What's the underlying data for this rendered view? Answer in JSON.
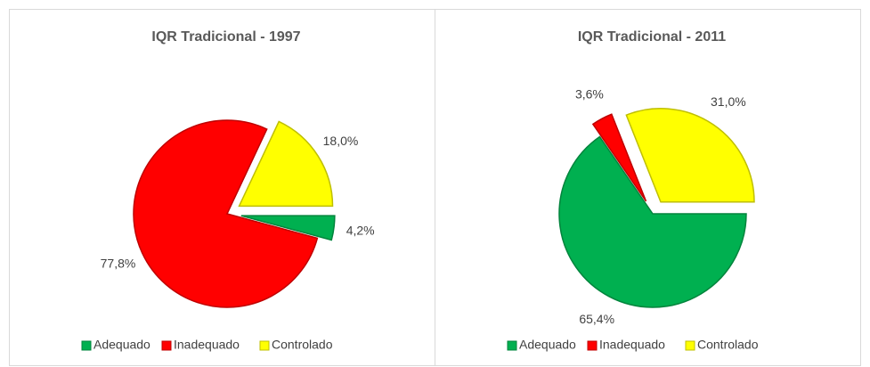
{
  "chart_data": [
    {
      "type": "pie",
      "title": "IQR Tradicional - 1997",
      "categories": [
        "Adequado",
        "Inadequado",
        "Controlado"
      ],
      "values": [
        4.2,
        77.8,
        18.0
      ],
      "value_labels": [
        "4,2%",
        "77,8%",
        "18,0%"
      ],
      "colors": [
        "#00b050",
        "#ff0000",
        "#ffff00"
      ],
      "legend": "bottom"
    },
    {
      "type": "pie",
      "title": "IQR Tradicional - 2011",
      "categories": [
        "Adequado",
        "Inadequado",
        "Controlado"
      ],
      "values": [
        65.4,
        3.6,
        31.0
      ],
      "value_labels": [
        "65,4%",
        "3,6%",
        "31,0%"
      ],
      "colors": [
        "#00b050",
        "#ff0000",
        "#ffff00"
      ],
      "legend": "bottom"
    }
  ]
}
